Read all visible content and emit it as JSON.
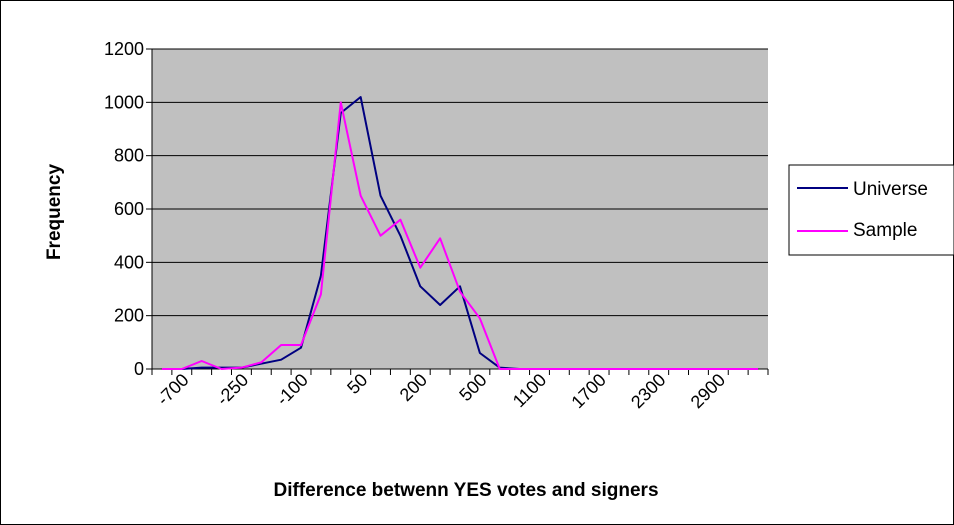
{
  "chart_data": {
    "type": "line",
    "title": "",
    "xlabel": "Difference betwenn YES votes and signers",
    "ylabel": "Frequency",
    "ylim": [
      0,
      1200
    ],
    "yticks": [
      "0",
      "200",
      "400",
      "600",
      "800",
      "1000",
      "1200"
    ],
    "xtick_labels": [
      "-700",
      "-250",
      "-100",
      "50",
      "200",
      "500",
      "1100",
      "1700",
      "2300",
      "2900"
    ],
    "grid": "horizontal",
    "legend_position": "right",
    "plot_background": "#c0c0c0",
    "x_positions": 31,
    "series": [
      {
        "name": "Universe",
        "color": "#000080",
        "values": [
          0,
          0,
          5,
          5,
          5,
          20,
          35,
          80,
          350,
          960,
          1020,
          650,
          500,
          310,
          240,
          310,
          60,
          5,
          0,
          0,
          0,
          0,
          0,
          0,
          0,
          0,
          0,
          0,
          0,
          0,
          0
        ]
      },
      {
        "name": "Sample",
        "color": "#ff00ff",
        "values": [
          0,
          0,
          30,
          0,
          5,
          25,
          90,
          90,
          280,
          1000,
          650,
          500,
          560,
          380,
          490,
          290,
          190,
          0,
          0,
          0,
          0,
          0,
          0,
          0,
          0,
          0,
          0,
          0,
          0,
          0,
          0
        ]
      }
    ]
  }
}
